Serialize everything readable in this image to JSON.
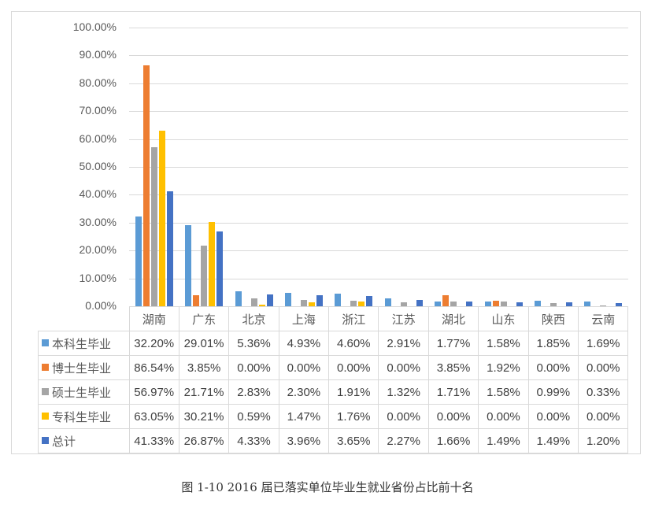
{
  "chart_data": {
    "type": "bar",
    "title": "",
    "caption": "图 1-10 2016 届已落实单位毕业生就业省份占比前十名",
    "xlabel": "",
    "ylabel": "",
    "ylim": [
      0,
      100
    ],
    "y_ticks": [
      "0.00%",
      "10.00%",
      "20.00%",
      "30.00%",
      "40.00%",
      "50.00%",
      "60.00%",
      "70.00%",
      "80.00%",
      "90.00%",
      "100.00%"
    ],
    "grid": true,
    "legend_position": "data-table",
    "categories": [
      "湖南",
      "广东",
      "北京",
      "上海",
      "浙江",
      "江苏",
      "湖北",
      "山东",
      "陕西",
      "云南"
    ],
    "series": [
      {
        "name": "本科生毕业",
        "color": "#5B9BD5",
        "values": [
          32.2,
          29.01,
          5.36,
          4.93,
          4.6,
          2.91,
          1.77,
          1.58,
          1.85,
          1.69
        ],
        "labels": [
          "32.20%",
          "29.01%",
          "5.36%",
          "4.93%",
          "4.60%",
          "2.91%",
          "1.77%",
          "1.58%",
          "1.85%",
          "1.69%"
        ]
      },
      {
        "name": "博士生毕业",
        "color": "#ED7D31",
        "values": [
          86.54,
          3.85,
          0.0,
          0.0,
          0.0,
          0.0,
          3.85,
          1.92,
          0.0,
          0.0
        ],
        "labels": [
          "86.54%",
          "3.85%",
          "0.00%",
          "0.00%",
          "0.00%",
          "0.00%",
          "3.85%",
          "1.92%",
          "0.00%",
          "0.00%"
        ]
      },
      {
        "name": "硕士生毕业",
        "color": "#A5A5A5",
        "values": [
          56.97,
          21.71,
          2.83,
          2.3,
          1.91,
          1.32,
          1.71,
          1.58,
          0.99,
          0.33
        ],
        "labels": [
          "56.97%",
          "21.71%",
          "2.83%",
          "2.30%",
          "1.91%",
          "1.32%",
          "1.71%",
          "1.58%",
          "0.99%",
          "0.33%"
        ]
      },
      {
        "name": "专科生毕业",
        "color": "#FFC000",
        "values": [
          63.05,
          30.21,
          0.59,
          1.47,
          1.76,
          0.0,
          0.0,
          0.0,
          0.0,
          0.0
        ],
        "labels": [
          "63.05%",
          "30.21%",
          "0.59%",
          "1.47%",
          "1.76%",
          "0.00%",
          "0.00%",
          "0.00%",
          "0.00%",
          "0.00%"
        ]
      },
      {
        "name": "总计",
        "color": "#4472C4",
        "values": [
          41.33,
          26.87,
          4.33,
          3.96,
          3.65,
          2.27,
          1.66,
          1.49,
          1.49,
          1.2
        ],
        "labels": [
          "41.33%",
          "26.87%",
          "4.33%",
          "3.96%",
          "3.65%",
          "2.27%",
          "1.66%",
          "1.49%",
          "1.49%",
          "1.20%"
        ]
      }
    ]
  }
}
